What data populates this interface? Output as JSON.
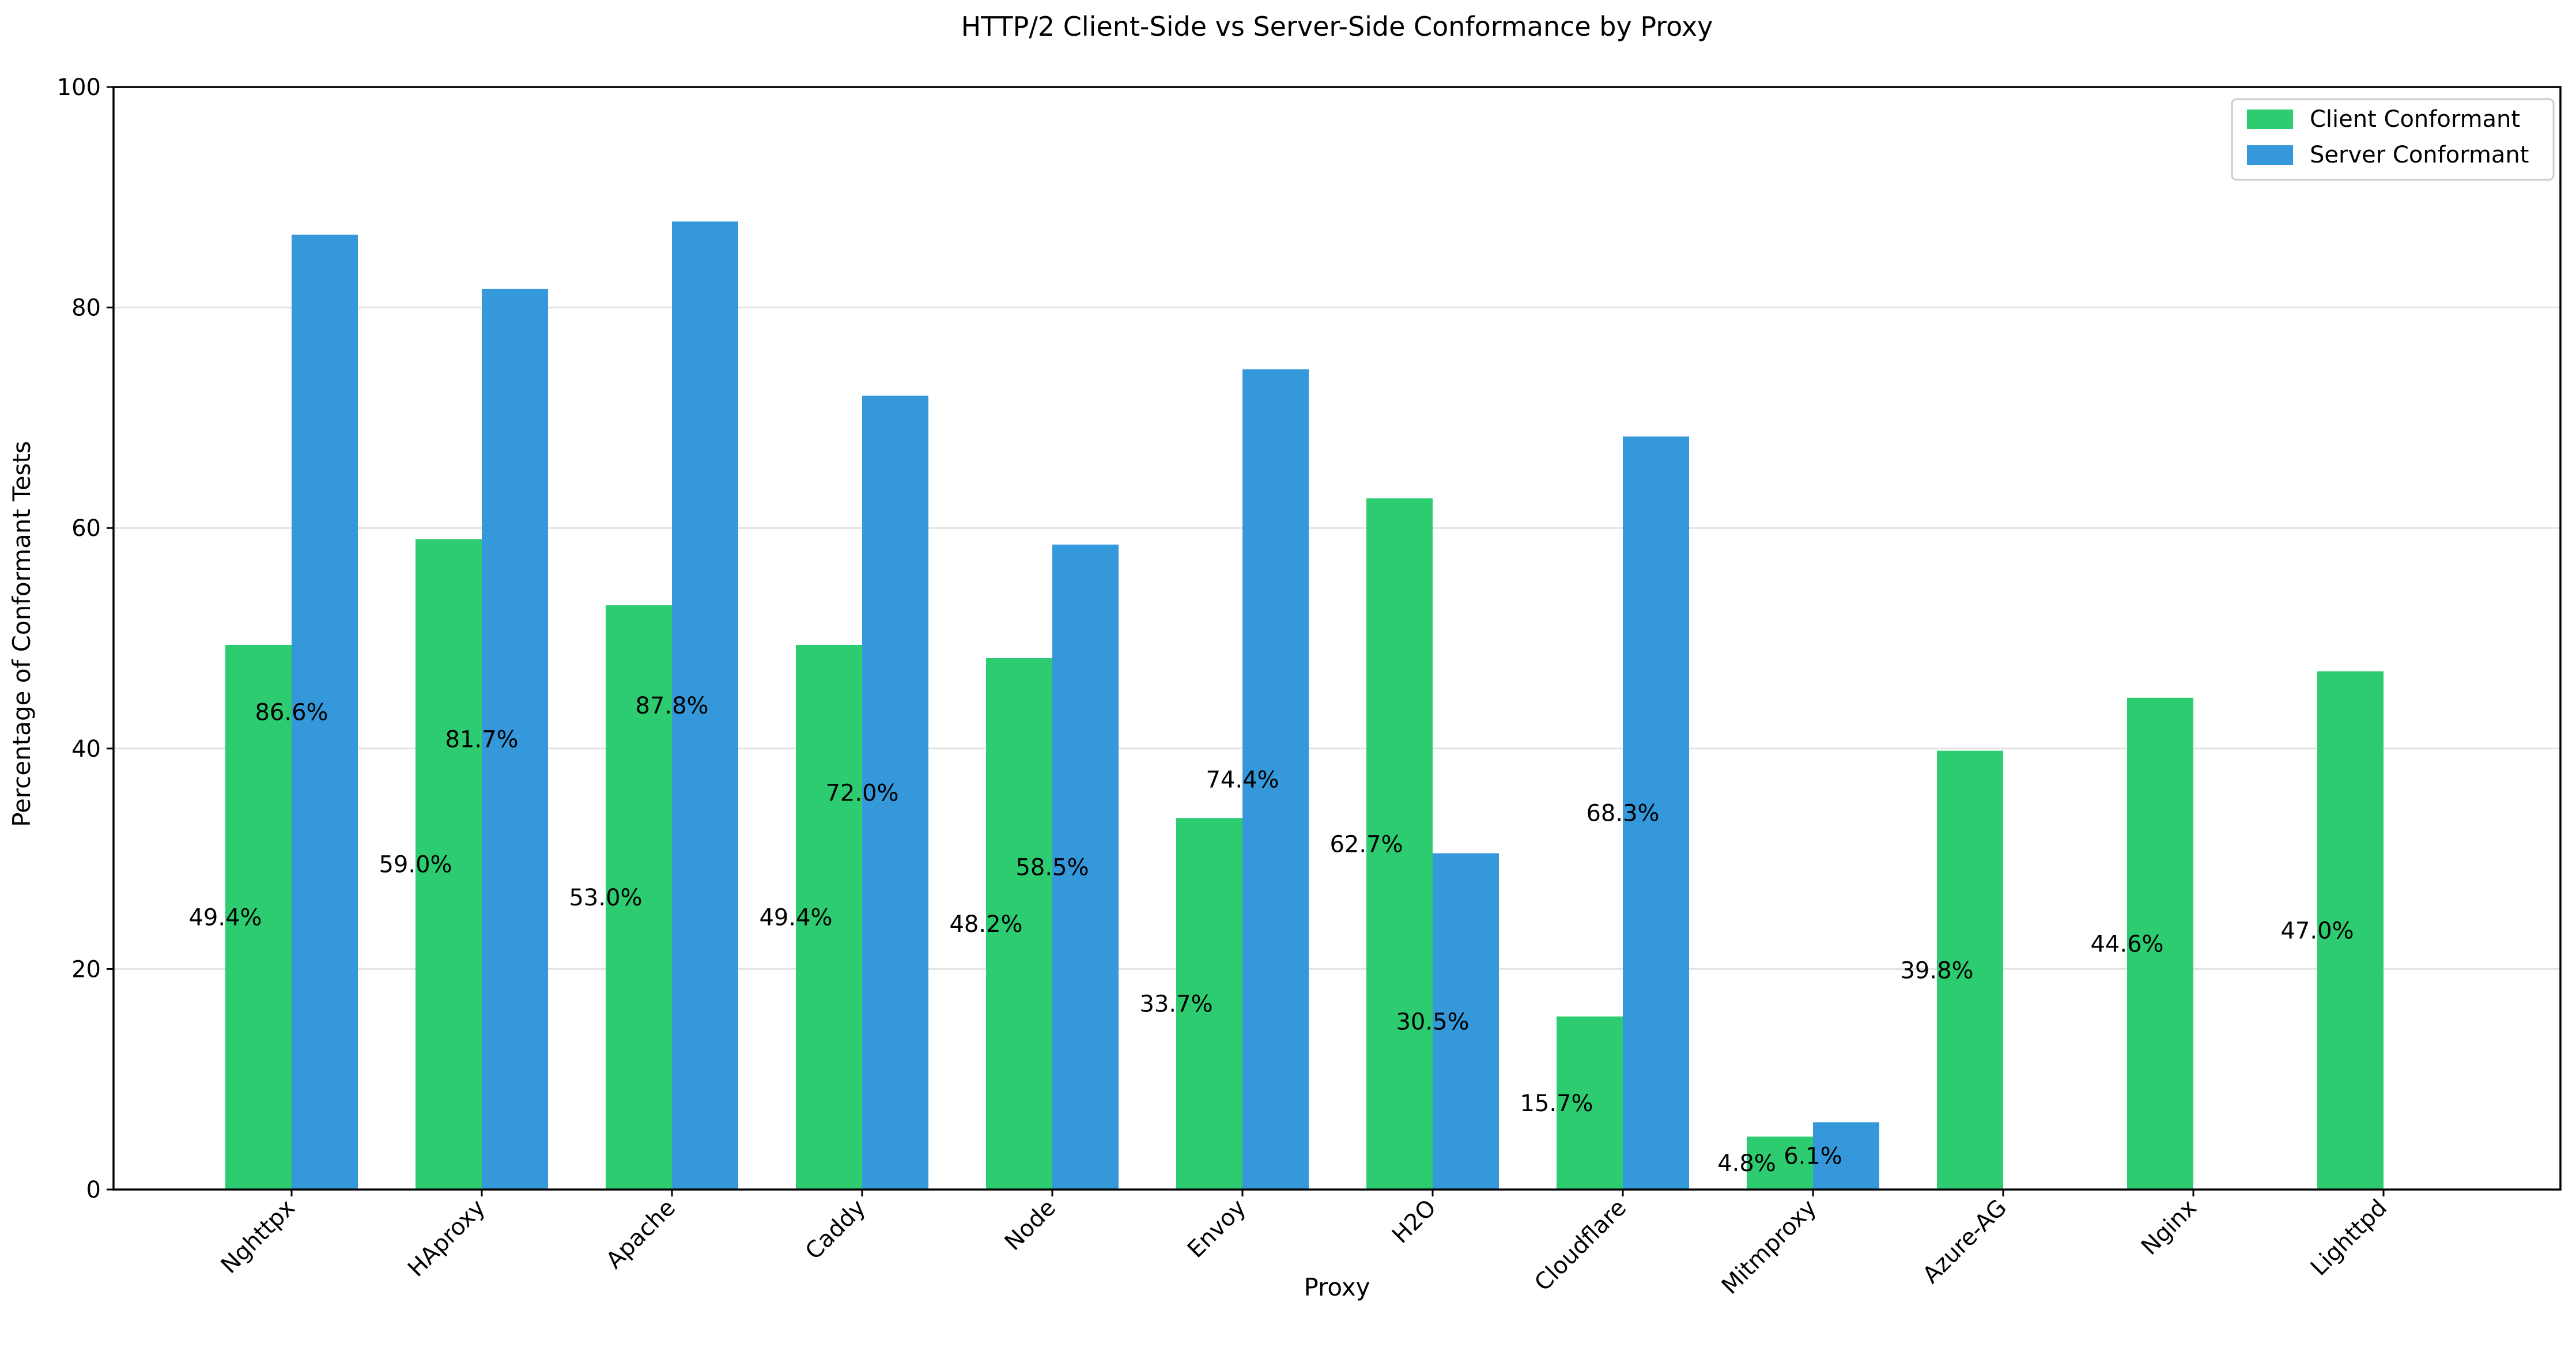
{
  "chart_data": {
    "type": "bar",
    "title": "HTTP/2 Client-Side vs Server-Side Conformance by Proxy",
    "xlabel": "Proxy",
    "ylabel": "Percentage of Conformant Tests",
    "ylim": [
      0,
      100
    ],
    "yticks": [
      0,
      20,
      40,
      60,
      80,
      100
    ],
    "grid": "horizontal",
    "legend_position": "top-right",
    "categories": [
      "Nghttpx",
      "HAproxy",
      "Apache",
      "Caddy",
      "Node",
      "Envoy",
      "H2O",
      "Cloudflare",
      "Mitmproxy",
      "Azure-AG",
      "Nginx",
      "Lighttpd"
    ],
    "series": [
      {
        "name": "Client Conformant",
        "color": "#2ecc71",
        "values": [
          49.4,
          59.0,
          53.0,
          49.4,
          48.2,
          33.7,
          62.7,
          15.7,
          4.8,
          39.8,
          44.6,
          47.0
        ],
        "labels": [
          "49.4%",
          "59.0%",
          "53.0%",
          "49.4%",
          "48.2%",
          "33.7%",
          "62.7%",
          "15.7%",
          "4.8%",
          "39.8%",
          "44.6%",
          "47.0%"
        ]
      },
      {
        "name": "Server Conformant",
        "color": "#3498db",
        "values": [
          86.6,
          81.7,
          87.8,
          72.0,
          58.5,
          74.4,
          30.5,
          68.3,
          6.1,
          null,
          null,
          null
        ],
        "labels": [
          "86.6%",
          "81.7%",
          "87.8%",
          "72.0%",
          "58.5%",
          "74.4%",
          "30.5%",
          "68.3%",
          "6.1%",
          null,
          null,
          null
        ]
      }
    ]
  }
}
